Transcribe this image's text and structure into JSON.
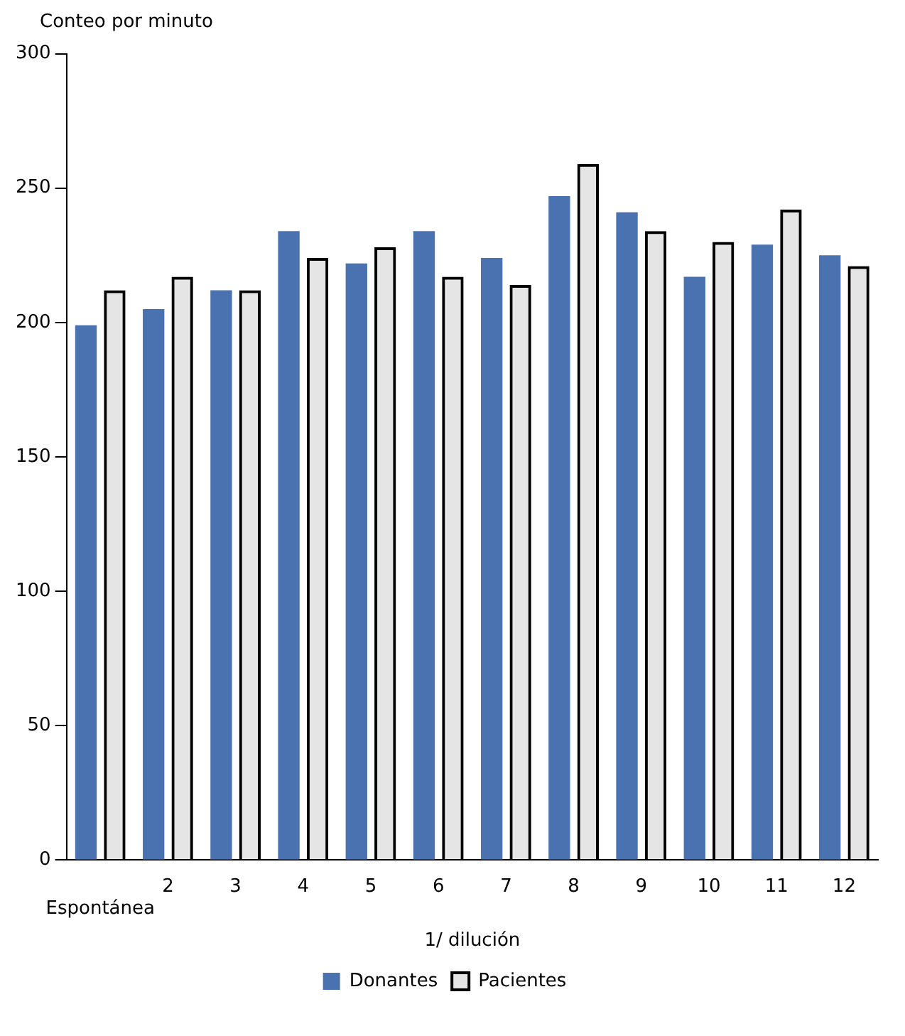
{
  "chart_data": {
    "type": "bar",
    "ylabel": "Conteo por minuto",
    "xlabel": "1/ dilución",
    "categories": [
      "Espontánea",
      "2",
      "3",
      "4",
      "5",
      "6",
      "7",
      "8",
      "9",
      "10",
      "11",
      "12"
    ],
    "series": [
      {
        "name": "Donantes",
        "color": "#4a72b0",
        "values": [
          199,
          205,
          212,
          234,
          222,
          234,
          224,
          247,
          241,
          217,
          229,
          225
        ]
      },
      {
        "name": "Pacientes",
        "color": "#000000",
        "values": [
          212,
          217,
          212,
          224,
          228,
          217,
          214,
          259,
          234,
          230,
          242,
          221
        ]
      }
    ],
    "ylim": [
      0,
      300
    ],
    "yticks": [
      0,
      50,
      100,
      150,
      200,
      250,
      300
    ],
    "grid": false,
    "legend": "bottom"
  }
}
